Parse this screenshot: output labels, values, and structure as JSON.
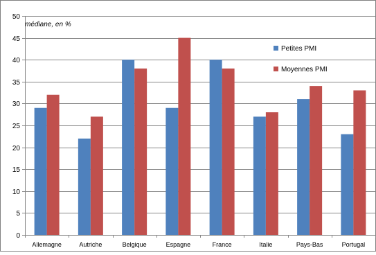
{
  "chart_data": {
    "type": "bar",
    "subtitle": "médiane, en %",
    "categories": [
      "Allemagne",
      "Autriche",
      "Belgique",
      "Espagne",
      "France",
      "Italie",
      "Pays-Bas",
      "Portugal"
    ],
    "series": [
      {
        "name": "Petites PMI",
        "color": "#4F81BD",
        "values": [
          29,
          22,
          40,
          29,
          40,
          27,
          31,
          23
        ]
      },
      {
        "name": "Moyennes PMI",
        "color": "#C0504D",
        "values": [
          32,
          27,
          38,
          45,
          38,
          28,
          34,
          33
        ]
      }
    ],
    "ylim": [
      0,
      50
    ],
    "yticks": [
      0,
      5,
      10,
      15,
      20,
      25,
      30,
      35,
      40,
      45,
      50
    ],
    "grid": true,
    "legend_position": "top-right"
  }
}
